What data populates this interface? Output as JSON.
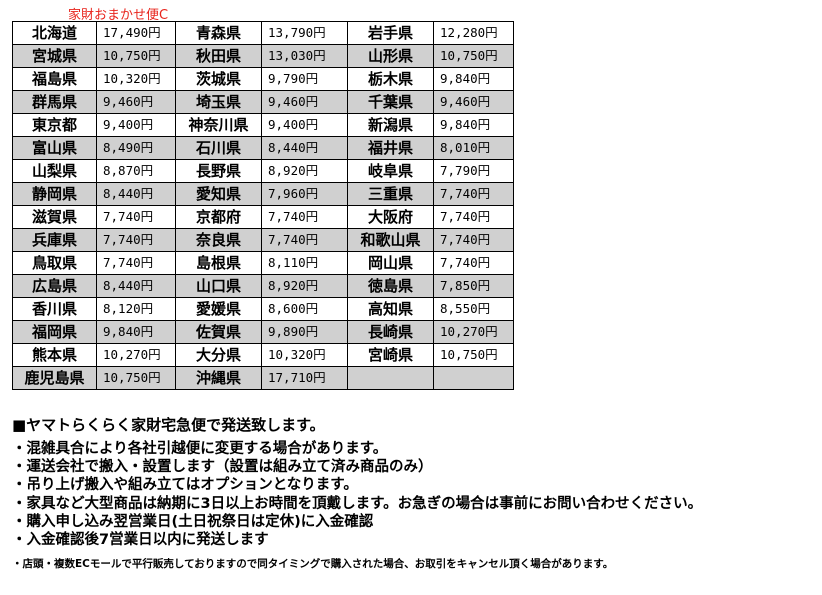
{
  "title": "家財おまかせ便C",
  "colors": {
    "title": "#e8241c",
    "row_alt": "#d0d0d0"
  },
  "rows": [
    [
      [
        "北海道",
        "17,490円"
      ],
      [
        "青森県",
        "13,790円"
      ],
      [
        "岩手県",
        "12,280円"
      ]
    ],
    [
      [
        "宮城県",
        "10,750円"
      ],
      [
        "秋田県",
        "13,030円"
      ],
      [
        "山形県",
        "10,750円"
      ]
    ],
    [
      [
        "福島県",
        "10,320円"
      ],
      [
        "茨城県",
        "9,790円"
      ],
      [
        "栃木県",
        "9,840円"
      ]
    ],
    [
      [
        "群馬県",
        "9,460円"
      ],
      [
        "埼玉県",
        "9,460円"
      ],
      [
        "千葉県",
        "9,460円"
      ]
    ],
    [
      [
        "東京都",
        "9,400円"
      ],
      [
        "神奈川県",
        "9,400円"
      ],
      [
        "新潟県",
        "9,840円"
      ]
    ],
    [
      [
        "富山県",
        "8,490円"
      ],
      [
        "石川県",
        "8,440円"
      ],
      [
        "福井県",
        "8,010円"
      ]
    ],
    [
      [
        "山梨県",
        "8,870円"
      ],
      [
        "長野県",
        "8,920円"
      ],
      [
        "岐阜県",
        "7,790円"
      ]
    ],
    [
      [
        "静岡県",
        "8,440円"
      ],
      [
        "愛知県",
        "7,960円"
      ],
      [
        "三重県",
        "7,740円"
      ]
    ],
    [
      [
        "滋賀県",
        "7,740円"
      ],
      [
        "京都府",
        "7,740円"
      ],
      [
        "大阪府",
        "7,740円"
      ]
    ],
    [
      [
        "兵庫県",
        "7,740円"
      ],
      [
        "奈良県",
        "7,740円"
      ],
      [
        "和歌山県",
        "7,740円"
      ]
    ],
    [
      [
        "鳥取県",
        "7,740円"
      ],
      [
        "島根県",
        "8,110円"
      ],
      [
        "岡山県",
        "7,740円"
      ]
    ],
    [
      [
        "広島県",
        "8,440円"
      ],
      [
        "山口県",
        "8,920円"
      ],
      [
        "徳島県",
        "7,850円"
      ]
    ],
    [
      [
        "香川県",
        "8,120円"
      ],
      [
        "愛媛県",
        "8,600円"
      ],
      [
        "高知県",
        "8,550円"
      ]
    ],
    [
      [
        "福岡県",
        "9,840円"
      ],
      [
        "佐賀県",
        "9,890円"
      ],
      [
        "長崎県",
        "10,270円"
      ]
    ],
    [
      [
        "熊本県",
        "10,270円"
      ],
      [
        "大分県",
        "10,320円"
      ],
      [
        "宮崎県",
        "10,750円"
      ]
    ],
    [
      [
        "鹿児島県",
        "10,750円"
      ],
      [
        "沖縄県",
        "17,710円"
      ],
      [
        "",
        ""
      ]
    ]
  ],
  "notes": {
    "heading": "■ヤマトらくらく家財宅急便で発送致します。",
    "bullets": [
      "・混雑具合により各社引越便に変更する場合があります。",
      "・運送会社で搬入・設置します（設置は組み立て済み商品のみ）",
      "・吊り上げ搬入や組み立てはオプションとなります。",
      "・家具など大型商品は納期に3日以上お時間を頂戴します。お急ぎの場合は事前にお問い合わせください。",
      "・購入申し込み翌営業日(土日祝祭日は定休)に入金確認",
      "・入金確認後7営業日以内に発送します"
    ],
    "small": "・店頭・複数ECモールで平行販売しておりますので同タイミングで購入された場合、お取引をキャンセル頂く場合があります。"
  }
}
